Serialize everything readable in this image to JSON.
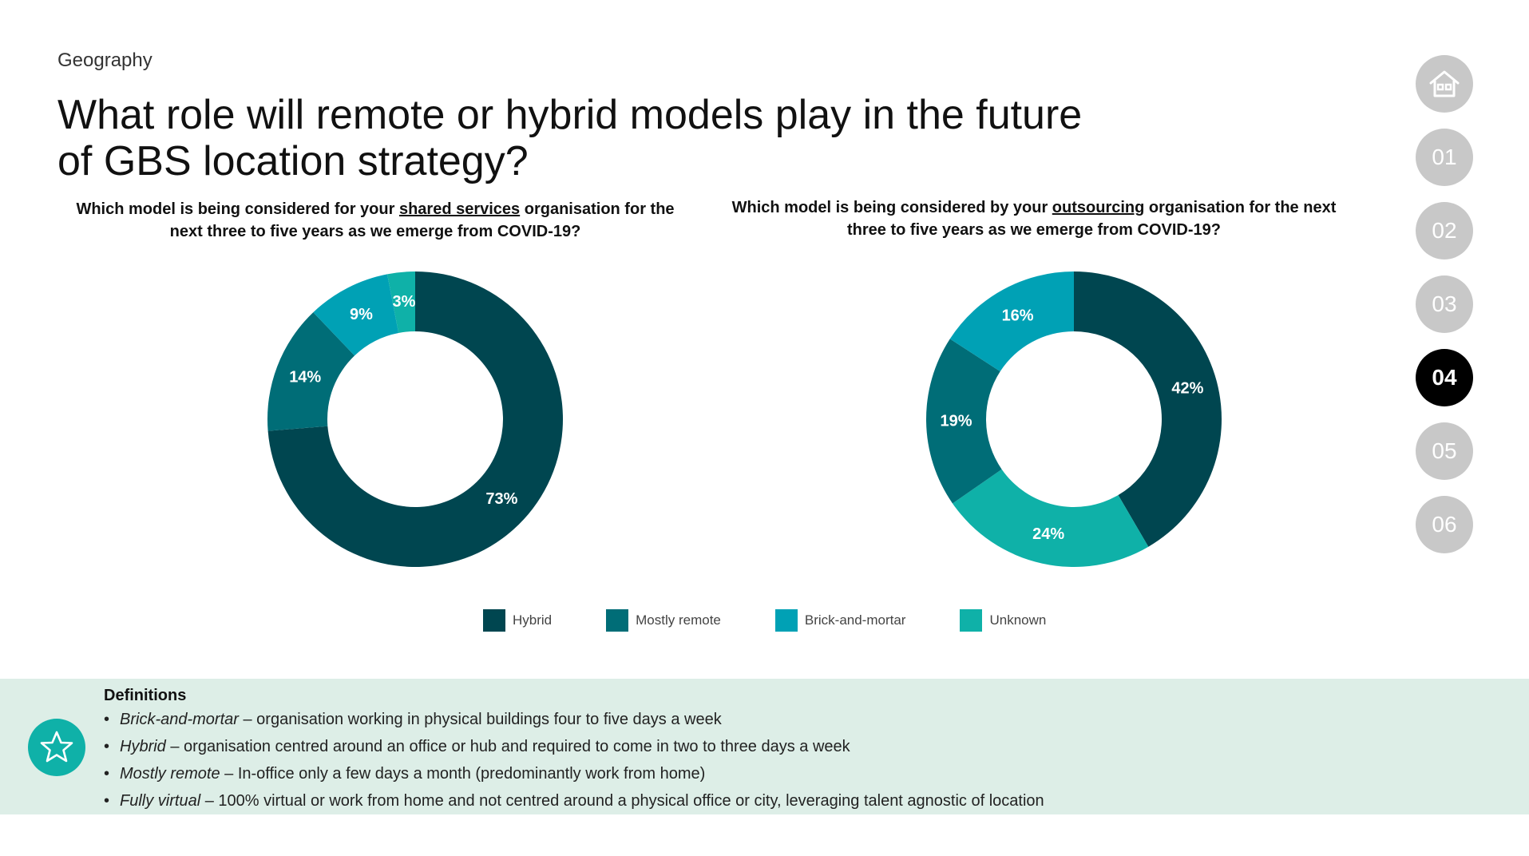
{
  "header": {
    "section": "Geography",
    "title": "What role will remote or hybrid models play in the future of GBS location strategy?"
  },
  "questions": {
    "q1": {
      "before": "Which model is being considered for your ",
      "emph": "shared services",
      "after": " organisation for the next three to five years as we emerge from COVID-19?"
    },
    "q2": {
      "before": "Which model is being considered by your ",
      "emph": "outsourcing",
      "after": " organisation for the next three to five years as we emerge from COVID-19?"
    }
  },
  "colors": {
    "hybrid": "#004650",
    "mostly_remote": "#006d77",
    "brick_and_mortar": "#00a1b5",
    "unknown": "#0fb1a8"
  },
  "chart_data": [
    {
      "type": "pie",
      "donut": true,
      "categories": [
        "Hybrid",
        "Mostly remote",
        "Brick-and-mortar",
        "Unknown"
      ],
      "values": [
        73,
        14,
        9,
        3
      ],
      "labels": [
        "73%",
        "14%",
        "9%",
        "3%"
      ],
      "legend": "bottom"
    },
    {
      "type": "pie",
      "donut": true,
      "categories": [
        "Hybrid",
        "Unknown",
        "Mostly remote",
        "Brick-and-mortar"
      ],
      "values": [
        42,
        24,
        19,
        16
      ],
      "labels": [
        "42%",
        "24%",
        "19%",
        "16%"
      ],
      "legend": "bottom"
    }
  ],
  "legend": [
    {
      "label": "Hybrid",
      "color": "#004650"
    },
    {
      "label": "Mostly remote",
      "color": "#006d77"
    },
    {
      "label": "Brick-and-mortar",
      "color": "#00a1b5"
    },
    {
      "label": "Unknown",
      "color": "#0fb1a8"
    }
  ],
  "nav": {
    "home_icon": "home-icon",
    "items": [
      "01",
      "02",
      "03",
      "04",
      "05",
      "06"
    ],
    "active": "04"
  },
  "definitions": {
    "title": "Definitions",
    "icon": "star-icon",
    "items": [
      {
        "term": "Brick-and-mortar",
        "text": " – organisation working in physical buildings four to five days a week"
      },
      {
        "term": "Hybrid",
        "text": " – organisation centred around an office or hub and required to come in two to three days a week"
      },
      {
        "term": "Mostly remote",
        "text": " – In-office only a few days a month (predominantly work from home)"
      },
      {
        "term": "Fully virtual",
        "text": " – 100% virtual or work from home and not centred around a physical office or city, leveraging talent agnostic of location"
      }
    ]
  }
}
